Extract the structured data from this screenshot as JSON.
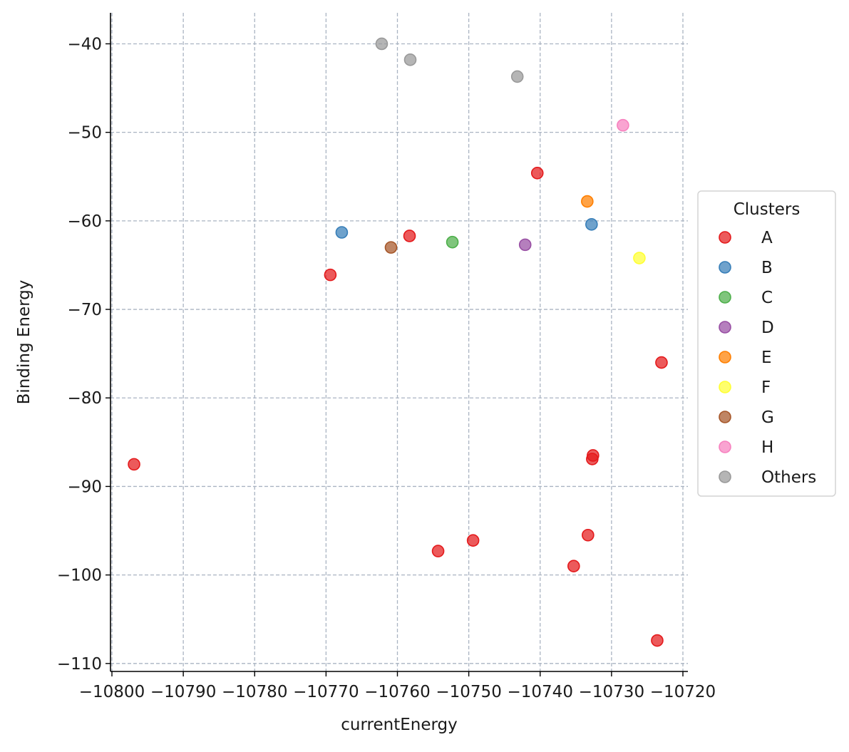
{
  "chart_data": {
    "type": "scatter",
    "title": "",
    "xlabel": "currentEnergy",
    "ylabel": "Binding Energy",
    "xlim": [
      -10800.2,
      -10719.3
    ],
    "ylim": [
      -110.9,
      -36.5
    ],
    "x_ticks": [
      -10800,
      -10790,
      -10780,
      -10770,
      -10760,
      -10750,
      -10740,
      -10730,
      -10720
    ],
    "x_tick_labels": [
      "−10800",
      "−10790",
      "−10780",
      "−10770",
      "−10760",
      "−10750",
      "−10740",
      "−10730",
      "−10720"
    ],
    "y_ticks": [
      -40,
      -50,
      -60,
      -70,
      -80,
      -90,
      -100,
      -110
    ],
    "y_tick_labels": [
      "−40",
      "−50",
      "−60",
      "−70",
      "−80",
      "−90",
      "−100",
      "−110"
    ],
    "grid": true,
    "legend": {
      "title": "Clusters",
      "position": "right"
    },
    "series": [
      {
        "name": "A",
        "color": "#e41a1c",
        "points": [
          [
            -10796.9,
            -87.5
          ],
          [
            -10769.4,
            -66.1
          ],
          [
            -10758.3,
            -61.7
          ],
          [
            -10754.3,
            -97.3
          ],
          [
            -10749.4,
            -96.1
          ],
          [
            -10740.4,
            -54.6
          ],
          [
            -10735.3,
            -99.0
          ],
          [
            -10733.3,
            -95.5
          ],
          [
            -10732.7,
            -86.9
          ],
          [
            -10732.6,
            -86.5
          ],
          [
            -10723.0,
            -76.0
          ],
          [
            -10723.6,
            -107.4
          ]
        ]
      },
      {
        "name": "B",
        "color": "#377eb8",
        "points": [
          [
            -10767.8,
            -61.3
          ],
          [
            -10732.8,
            -60.4
          ]
        ]
      },
      {
        "name": "C",
        "color": "#4daf4a",
        "points": [
          [
            -10752.3,
            -62.4
          ]
        ]
      },
      {
        "name": "D",
        "color": "#984ea3",
        "points": [
          [
            -10742.1,
            -62.7
          ]
        ]
      },
      {
        "name": "E",
        "color": "#ff7f00",
        "points": [
          [
            -10733.4,
            -57.8
          ]
        ]
      },
      {
        "name": "F",
        "color": "#ffff33",
        "points": [
          [
            -10726.1,
            -64.2
          ]
        ]
      },
      {
        "name": "G",
        "color": "#a65628",
        "points": [
          [
            -10760.9,
            -63.0
          ]
        ]
      },
      {
        "name": "H",
        "color": "#f781bf",
        "points": [
          [
            -10728.4,
            -49.2
          ]
        ]
      },
      {
        "name": "Others",
        "color": "#999999",
        "points": [
          [
            -10762.2,
            -40.0
          ],
          [
            -10758.2,
            -41.8
          ],
          [
            -10743.2,
            -43.7
          ]
        ]
      }
    ]
  }
}
